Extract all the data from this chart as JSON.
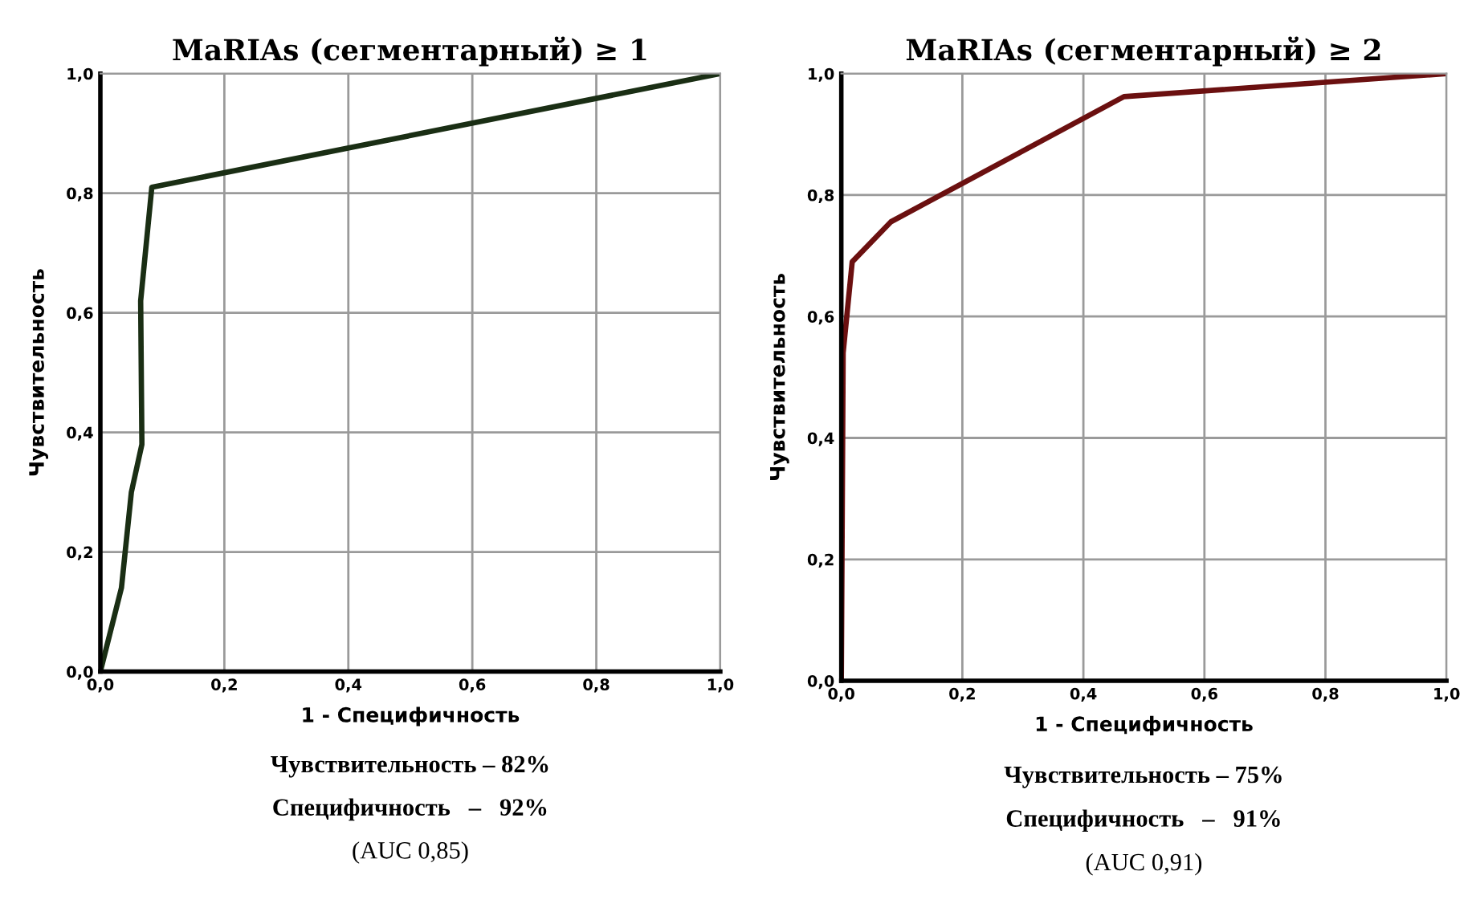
{
  "chart_data": [
    {
      "type": "line",
      "title": "MaRIAs (сегментарный) ≥ 1",
      "xlabel": "1 - Специфичность",
      "ylabel": "Чувствительность",
      "x": [
        0,
        0.034,
        0.05,
        0.067,
        0.065,
        0.083,
        1
      ],
      "series": [
        {
          "color": "#1a2e14",
          "values": [
            0,
            0.14,
            0.3,
            0.38,
            0.62,
            0.81,
            1
          ]
        }
      ],
      "xlim": [
        0,
        1
      ],
      "ylim": [
        0,
        1
      ],
      "xticks": [
        {
          "value": 0,
          "label": "0,0"
        },
        {
          "value": 0.2,
          "label": "0,2"
        },
        {
          "value": 0.4,
          "label": "0,4"
        },
        {
          "value": 0.6,
          "label": "0,6"
        },
        {
          "value": 0.8,
          "label": "0,8"
        },
        {
          "value": 1,
          "label": "1,0"
        }
      ],
      "yticks": [
        {
          "value": 0,
          "label": "0,0"
        },
        {
          "value": 0.2,
          "label": "0,2"
        },
        {
          "value": 0.4,
          "label": "0,4"
        },
        {
          "value": 0.6,
          "label": "0,6"
        },
        {
          "value": 0.8,
          "label": "0,8"
        },
        {
          "value": 1,
          "label": "1,0"
        }
      ],
      "grid": true,
      "annotations": [
        "Чувствительность – 82%",
        "Специфичность   –   92%",
        "(AUC 0,85)"
      ]
    },
    {
      "type": "line",
      "title": "MaRIAs (сегментарный) ≥ 2",
      "xlabel": "1 - Специфичность",
      "ylabel": "Чувствительность",
      "x": [
        0,
        0.003,
        0.018,
        0.082,
        0.467,
        1
      ],
      "series": [
        {
          "color": "#6b1010",
          "values": [
            0,
            0.54,
            0.69,
            0.756,
            0.962,
            1
          ]
        }
      ],
      "xlim": [
        0,
        1
      ],
      "ylim": [
        0,
        1
      ],
      "xticks": [
        {
          "value": 0,
          "label": "0,0"
        },
        {
          "value": 0.2,
          "label": "0,2"
        },
        {
          "value": 0.4,
          "label": "0,4"
        },
        {
          "value": 0.6,
          "label": "0,6"
        },
        {
          "value": 0.8,
          "label": "0,8"
        },
        {
          "value": 1,
          "label": "1,0"
        }
      ],
      "yticks": [
        {
          "value": 0,
          "label": "0,0"
        },
        {
          "value": 0.2,
          "label": "0,2"
        },
        {
          "value": 0.4,
          "label": "0,4"
        },
        {
          "value": 0.6,
          "label": "0,6"
        },
        {
          "value": 0.8,
          "label": "0,8"
        },
        {
          "value": 1,
          "label": "1,0"
        }
      ],
      "grid": true,
      "annotations": [
        "Чувствительность – 75%",
        "Специфичность   –   91%",
        "(AUC 0,91)"
      ]
    }
  ]
}
